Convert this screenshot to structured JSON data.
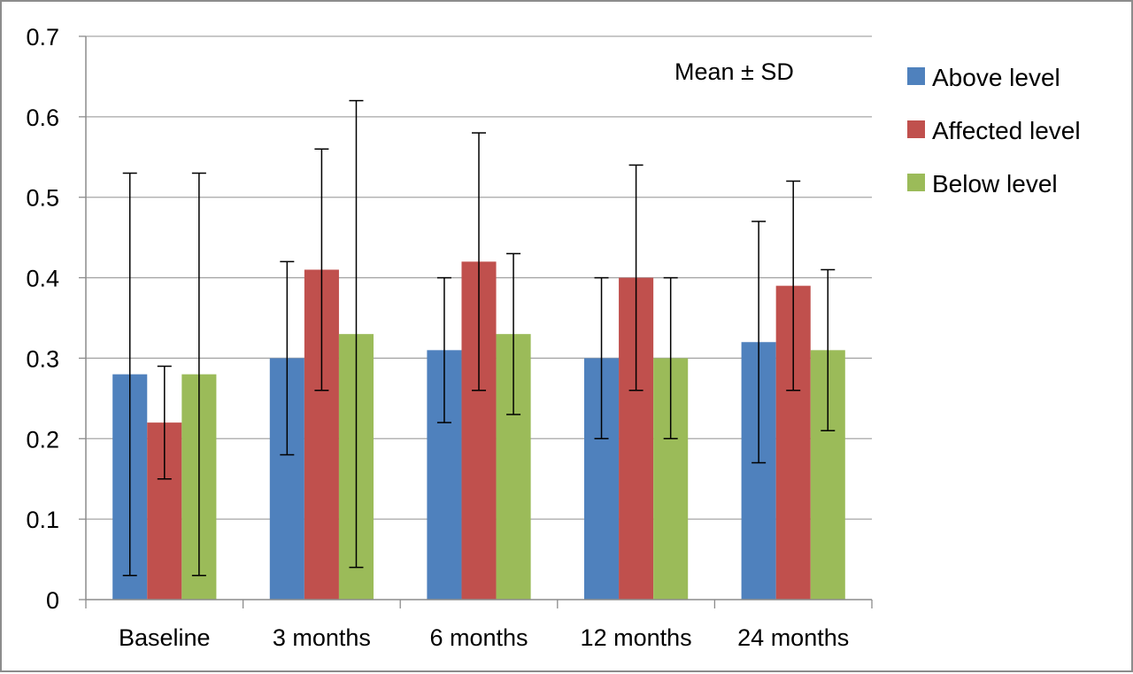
{
  "chart_data": {
    "type": "bar",
    "categories": [
      "Baseline",
      "3 months",
      "6 months",
      "12 months",
      "24 months"
    ],
    "series": [
      {
        "name": "Above level",
        "color": "#4F81BD",
        "values": [
          0.28,
          0.3,
          0.31,
          0.3,
          0.32
        ],
        "error_low": [
          0.03,
          0.18,
          0.22,
          0.2,
          0.17
        ],
        "error_high": [
          0.53,
          0.42,
          0.4,
          0.4,
          0.47
        ]
      },
      {
        "name": "Affected level",
        "color": "#C0504D",
        "values": [
          0.22,
          0.41,
          0.42,
          0.4,
          0.39
        ],
        "error_low": [
          0.15,
          0.26,
          0.26,
          0.26,
          0.26
        ],
        "error_high": [
          0.29,
          0.56,
          0.58,
          0.54,
          0.52
        ]
      },
      {
        "name": "Below level",
        "color": "#9BBB59",
        "values": [
          0.28,
          0.33,
          0.33,
          0.3,
          0.31
        ],
        "error_low": [
          0.03,
          0.04,
          0.23,
          0.2,
          0.21
        ],
        "error_high": [
          0.53,
          0.62,
          0.43,
          0.4,
          0.41
        ]
      }
    ],
    "yticks": [
      "0",
      "0.1",
      "0.2",
      "0.3",
      "0.4",
      "0.5",
      "0.6",
      "0.7"
    ],
    "ylim": [
      0,
      0.7
    ],
    "annotation": "Mean ± SD",
    "title": "",
    "xlabel": "",
    "ylabel": "",
    "grid": true,
    "legend_position": "right"
  }
}
